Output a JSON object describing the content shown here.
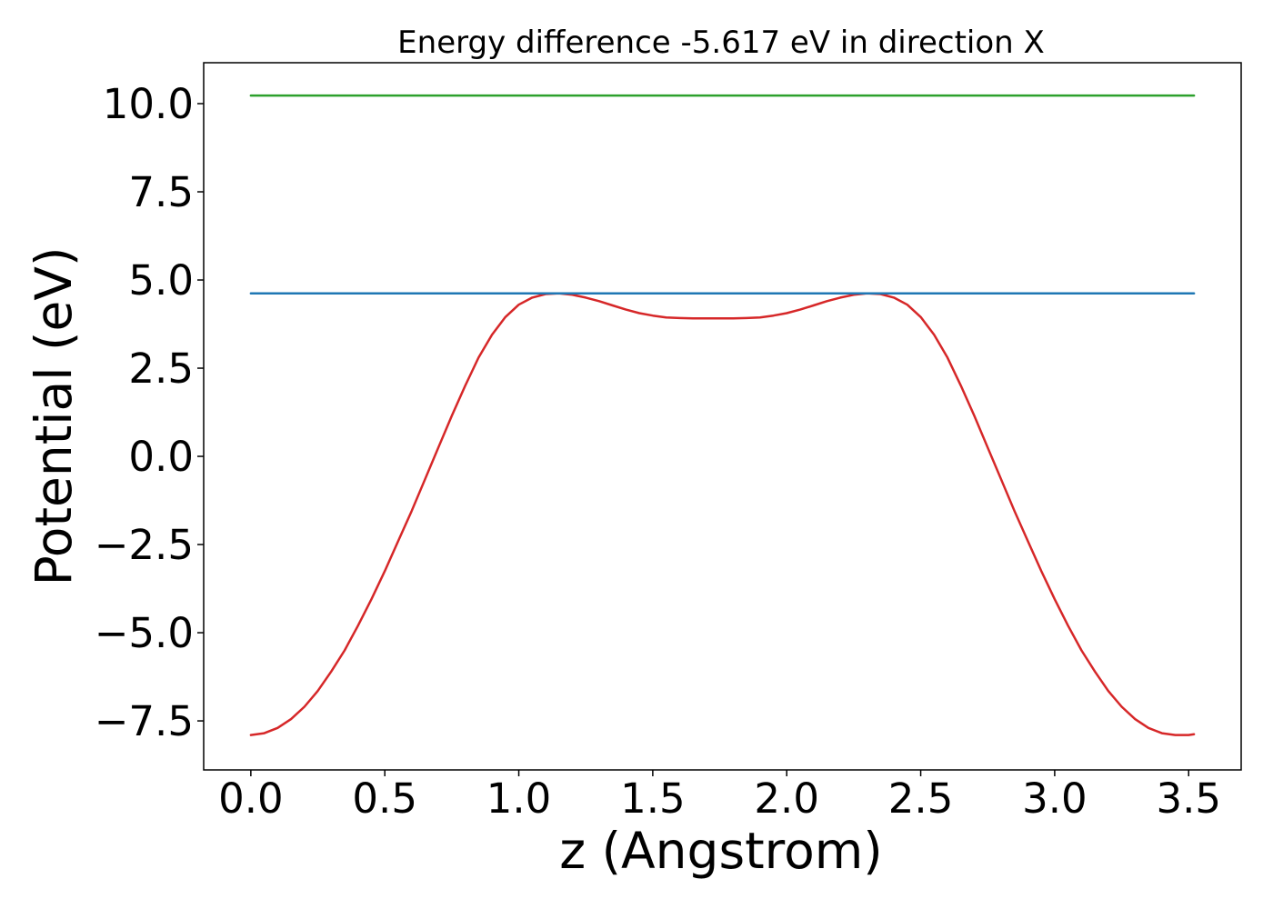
{
  "chart_data": {
    "type": "line",
    "title": "Energy difference -5.617 eV in direction X",
    "xlabel": "z (Angstrom)",
    "ylabel": "Potential (eV)",
    "xlim": [
      -0.176,
      3.696
    ],
    "ylim": [
      -8.89,
      11.16
    ],
    "x_ticks": [
      0.0,
      0.5,
      1.0,
      1.5,
      2.0,
      2.5,
      3.0,
      3.5
    ],
    "x_tick_labels": [
      "0.0",
      "0.5",
      "1.0",
      "1.5",
      "2.0",
      "2.5",
      "3.0",
      "3.5"
    ],
    "y_ticks": [
      -7.5,
      -5.0,
      -2.5,
      0.0,
      2.5,
      5.0,
      7.5,
      10.0
    ],
    "y_tick_labels": [
      "−7.5",
      "−5.0",
      "−2.5",
      "0.0",
      "2.5",
      "5.0",
      "7.5",
      "10.0"
    ],
    "grid": false,
    "series": [
      {
        "color": "#d62728",
        "x": [
          0.0,
          0.05,
          0.1,
          0.15,
          0.2,
          0.25,
          0.3,
          0.35,
          0.4,
          0.45,
          0.5,
          0.55,
          0.6,
          0.65,
          0.7,
          0.75,
          0.8,
          0.85,
          0.9,
          0.95,
          1.0,
          1.05,
          1.1,
          1.15,
          1.2,
          1.25,
          1.3,
          1.35,
          1.4,
          1.45,
          1.5,
          1.55,
          1.6,
          1.65,
          1.7,
          1.75,
          1.8,
          1.85,
          1.9,
          1.95,
          2.0,
          2.05,
          2.1,
          2.15,
          2.2,
          2.25,
          2.3,
          2.35,
          2.4,
          2.45,
          2.5,
          2.55,
          2.6,
          2.65,
          2.7,
          2.75,
          2.8,
          2.85,
          2.9,
          2.95,
          3.0,
          3.05,
          3.1,
          3.15,
          3.2,
          3.25,
          3.3,
          3.35,
          3.4,
          3.45,
          3.5,
          3.52
        ],
        "values": [
          -7.9,
          -7.85,
          -7.7,
          -7.45,
          -7.1,
          -6.65,
          -6.1,
          -5.5,
          -4.8,
          -4.05,
          -3.25,
          -2.4,
          -1.55,
          -0.65,
          0.25,
          1.15,
          2.0,
          2.8,
          3.45,
          3.95,
          4.3,
          4.5,
          4.6,
          4.62,
          4.58,
          4.5,
          4.4,
          4.28,
          4.16,
          4.06,
          3.99,
          3.94,
          3.92,
          3.91,
          3.91,
          3.91,
          3.91,
          3.92,
          3.94,
          3.99,
          4.06,
          4.16,
          4.28,
          4.4,
          4.5,
          4.58,
          4.62,
          4.6,
          4.5,
          4.3,
          3.95,
          3.45,
          2.8,
          2.0,
          1.15,
          0.25,
          -0.65,
          -1.55,
          -2.4,
          -3.25,
          -4.05,
          -4.8,
          -5.5,
          -6.1,
          -6.65,
          -7.1,
          -7.45,
          -7.7,
          -7.85,
          -7.9,
          -7.9,
          -7.88
        ]
      },
      {
        "color": "#1f77b4",
        "x": [
          0.0,
          3.52
        ],
        "values": [
          4.62,
          4.62
        ]
      },
      {
        "color": "#2ca02c",
        "x": [
          0.0,
          3.52
        ],
        "values": [
          10.23,
          10.23
        ]
      }
    ]
  }
}
